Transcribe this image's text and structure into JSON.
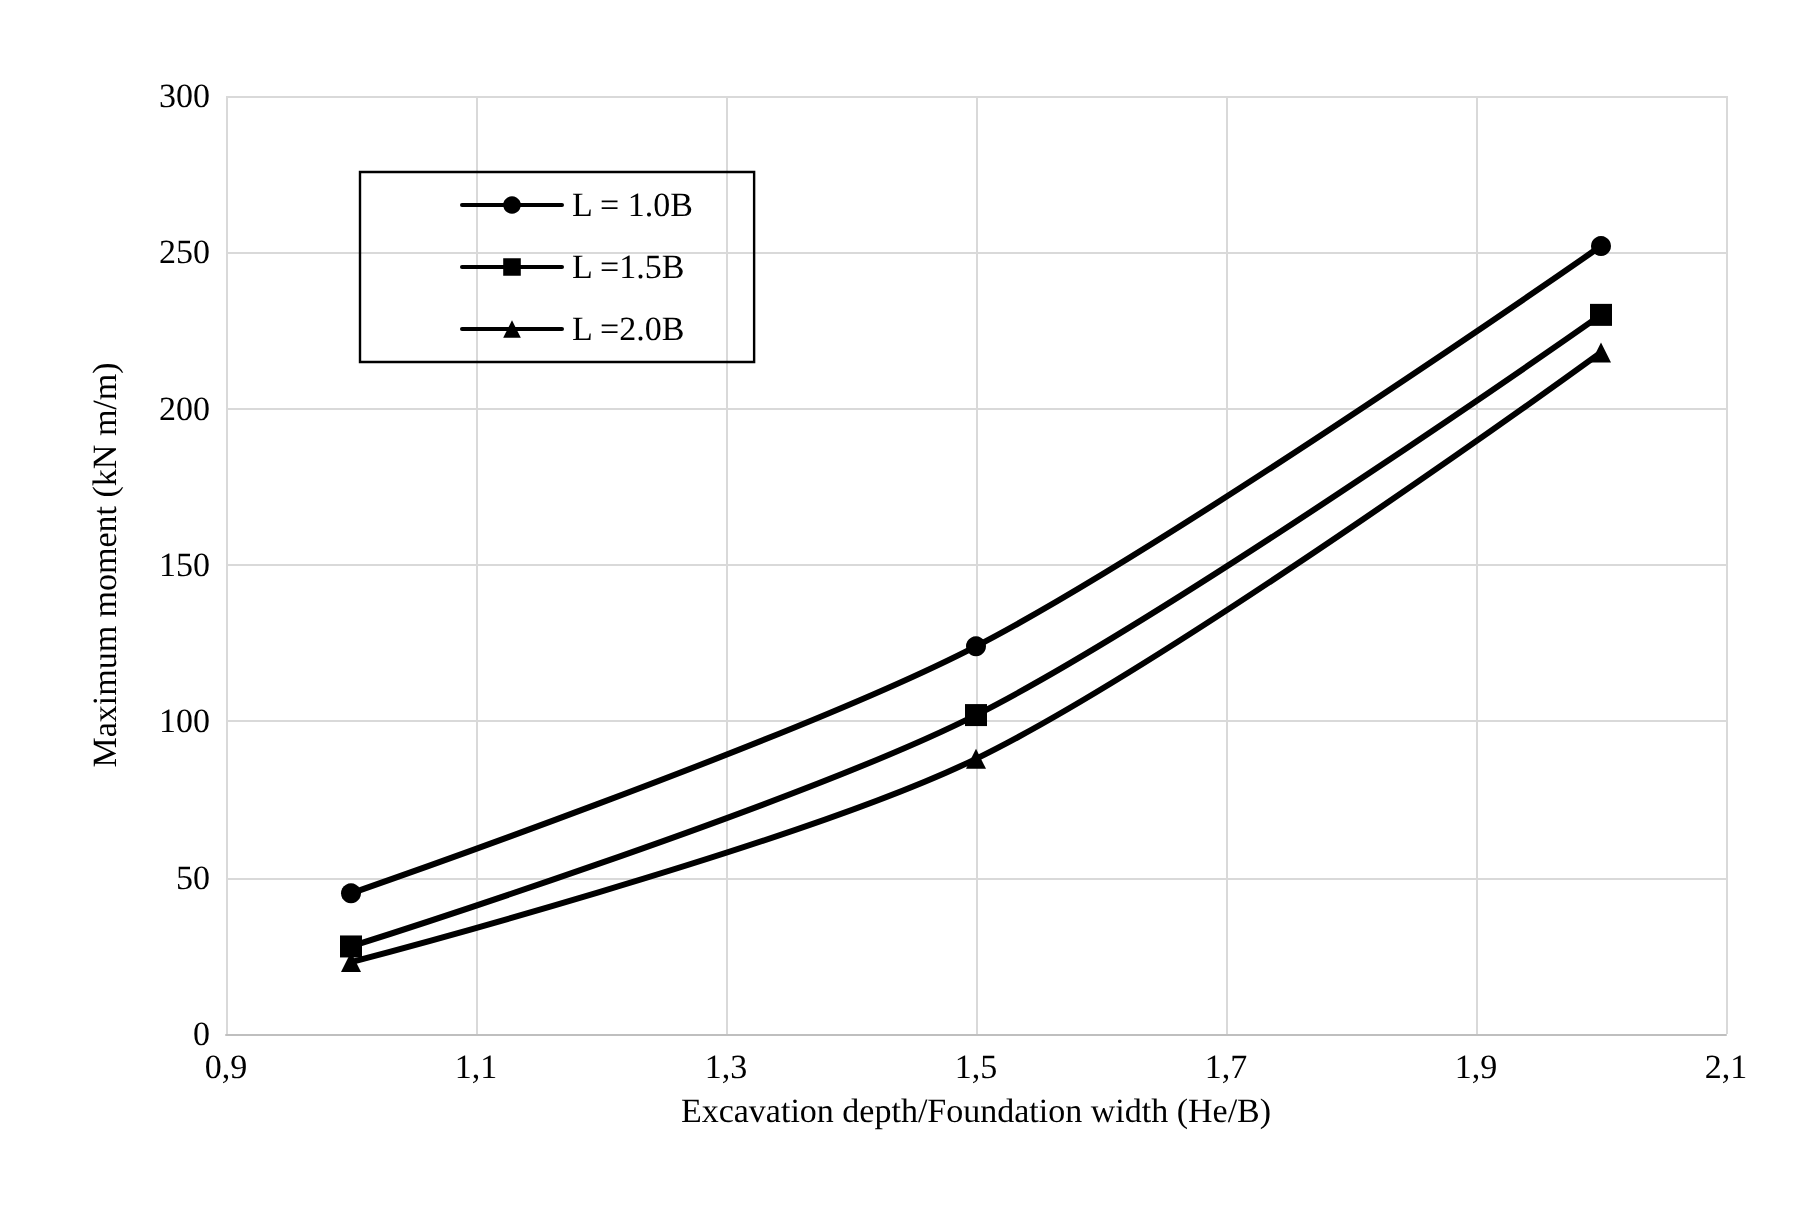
{
  "chart_data": {
    "type": "line",
    "xlabel": "Excavation depth/Foundation width (He/B)",
    "ylabel": "Maximum moment (kN m/m)",
    "x": [
      1.0,
      1.5,
      2.0
    ],
    "series": [
      {
        "name": "L = 1.0B",
        "color": "#000000",
        "values": [
          45,
          124,
          252
        ],
        "marker": "circle"
      },
      {
        "name": "L =1.5B",
        "color": "#000000",
        "values": [
          28,
          102,
          230
        ],
        "marker": "square"
      },
      {
        "name": "L =2.0B",
        "color": "#000000",
        "values": [
          23,
          88,
          218
        ],
        "marker": "triangle"
      }
    ],
    "xlim": [
      0.9,
      2.1
    ],
    "xticks": [
      {
        "value": 0.9,
        "label": "0,9"
      },
      {
        "value": 1.1,
        "label": "1,1"
      },
      {
        "value": 1.3,
        "label": "1,3"
      },
      {
        "value": 1.5,
        "label": "1,5"
      },
      {
        "value": 1.7,
        "label": "1,7"
      },
      {
        "value": 1.9,
        "label": "1,9"
      },
      {
        "value": 2.1,
        "label": "2,1"
      }
    ],
    "ylim": [
      0,
      300
    ],
    "yticks": [
      0,
      50,
      100,
      150,
      200,
      250,
      300
    ],
    "grid": true,
    "legend": "top left",
    "line_style": "solid"
  }
}
